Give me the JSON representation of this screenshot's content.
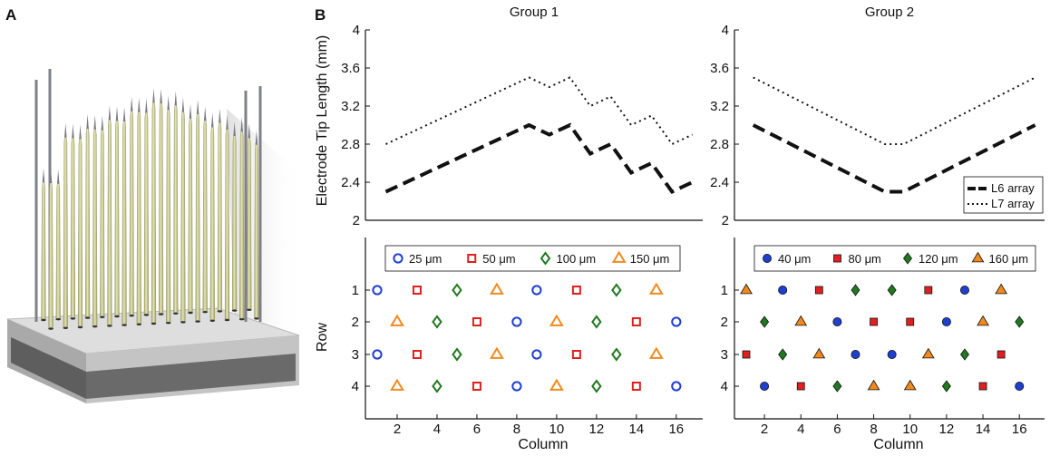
{
  "panel_labels": {
    "a": "A",
    "b": "B"
  },
  "illustration": {
    "description_icon": "electrode-array-3d-icon",
    "colors": {
      "shank": "#cfcf9a",
      "shank_dark": "#9f9f6a",
      "tip": "#777788",
      "base_top": "#d8d8d8",
      "base_side": "#5e5e5e"
    }
  },
  "colors": {
    "blue": "#1f3fd0",
    "red": "#e02020",
    "green": "#1f7a1f",
    "orange": "#f08a1e",
    "line": "#111111"
  },
  "chart_data": [
    {
      "type": "line",
      "title": "Group 1",
      "ylabel": "Electrode Tip Length (mm)",
      "xlim": [
        0,
        16.5
      ],
      "ylim": [
        2,
        4
      ],
      "yticks": [
        "2",
        "2.4",
        "2.8",
        "3.2",
        "3.6",
        "4"
      ],
      "series": [
        {
          "name": "L6 array",
          "style": "dashed",
          "x": [
            1,
            2,
            3,
            4,
            5,
            6,
            7,
            8,
            9,
            10,
            11,
            12,
            13,
            14,
            15,
            16
          ],
          "y": [
            2.3,
            2.4,
            2.5,
            2.6,
            2.7,
            2.8,
            2.9,
            3.0,
            2.9,
            3.0,
            2.7,
            2.8,
            2.5,
            2.6,
            2.3,
            2.4
          ]
        },
        {
          "name": "L7 array",
          "style": "dotted",
          "x": [
            1,
            2,
            3,
            4,
            5,
            6,
            7,
            8,
            9,
            10,
            11,
            12,
            13,
            14,
            15,
            16
          ],
          "y": [
            2.8,
            2.9,
            3.0,
            3.1,
            3.2,
            3.3,
            3.4,
            3.5,
            3.4,
            3.5,
            3.2,
            3.3,
            3.0,
            3.1,
            2.8,
            2.9
          ]
        }
      ]
    },
    {
      "type": "line",
      "title": "Group 2",
      "xlim": [
        0,
        16.5
      ],
      "ylim": [
        2,
        4
      ],
      "yticks": [
        "2",
        "2.4",
        "2.8",
        "3.2",
        "3.6",
        "4"
      ],
      "legend": {
        "position": "bottom-right",
        "entries": [
          "L6 array",
          "L7 array"
        ]
      },
      "series": [
        {
          "name": "L6 array",
          "style": "dashed",
          "x": [
            1,
            2,
            3,
            4,
            5,
            6,
            7,
            8,
            9,
            10,
            11,
            12,
            13,
            14,
            15,
            16
          ],
          "y": [
            3.0,
            2.9,
            2.8,
            2.7,
            2.6,
            2.5,
            2.4,
            2.3,
            2.3,
            2.4,
            2.5,
            2.6,
            2.7,
            2.8,
            2.9,
            3.0
          ]
        },
        {
          "name": "L7 array",
          "style": "dotted",
          "x": [
            1,
            2,
            3,
            4,
            5,
            6,
            7,
            8,
            9,
            10,
            11,
            12,
            13,
            14,
            15,
            16
          ],
          "y": [
            3.5,
            3.4,
            3.3,
            3.2,
            3.1,
            3.0,
            2.9,
            2.8,
            2.8,
            2.9,
            3.0,
            3.1,
            3.2,
            3.3,
            3.4,
            3.5
          ]
        }
      ]
    },
    {
      "type": "scatter",
      "panel": "Group 1 layout",
      "filled": false,
      "ylabel": "Row",
      "xlabel": "Column",
      "xticks": [
        "2",
        "4",
        "6",
        "8",
        "10",
        "12",
        "14",
        "16"
      ],
      "rows": [
        "1",
        "2",
        "3",
        "4"
      ],
      "legend": [
        {
          "label": "25 μm",
          "shape": "circle",
          "color": "#1f3fd0"
        },
        {
          "label": "50 μm",
          "shape": "square",
          "color": "#e02020"
        },
        {
          "label": "100 μm",
          "shape": "diamond",
          "color": "#1f7a1f"
        },
        {
          "label": "150 μm",
          "shape": "triangle",
          "color": "#f08a1e"
        }
      ],
      "points": [
        {
          "row": 1,
          "col": 1,
          "shape": "circle"
        },
        {
          "row": 1,
          "col": 3,
          "shape": "square"
        },
        {
          "row": 1,
          "col": 5,
          "shape": "diamond"
        },
        {
          "row": 1,
          "col": 7,
          "shape": "triangle"
        },
        {
          "row": 1,
          "col": 9,
          "shape": "circle"
        },
        {
          "row": 1,
          "col": 11,
          "shape": "square"
        },
        {
          "row": 1,
          "col": 13,
          "shape": "diamond"
        },
        {
          "row": 1,
          "col": 15,
          "shape": "triangle"
        },
        {
          "row": 2,
          "col": 2,
          "shape": "triangle"
        },
        {
          "row": 2,
          "col": 4,
          "shape": "diamond"
        },
        {
          "row": 2,
          "col": 6,
          "shape": "square"
        },
        {
          "row": 2,
          "col": 8,
          "shape": "circle"
        },
        {
          "row": 2,
          "col": 10,
          "shape": "triangle"
        },
        {
          "row": 2,
          "col": 12,
          "shape": "diamond"
        },
        {
          "row": 2,
          "col": 14,
          "shape": "square"
        },
        {
          "row": 2,
          "col": 16,
          "shape": "circle"
        },
        {
          "row": 3,
          "col": 1,
          "shape": "circle"
        },
        {
          "row": 3,
          "col": 3,
          "shape": "square"
        },
        {
          "row": 3,
          "col": 5,
          "shape": "diamond"
        },
        {
          "row": 3,
          "col": 7,
          "shape": "triangle"
        },
        {
          "row": 3,
          "col": 9,
          "shape": "circle"
        },
        {
          "row": 3,
          "col": 11,
          "shape": "square"
        },
        {
          "row": 3,
          "col": 13,
          "shape": "diamond"
        },
        {
          "row": 3,
          "col": 15,
          "shape": "triangle"
        },
        {
          "row": 4,
          "col": 2,
          "shape": "triangle"
        },
        {
          "row": 4,
          "col": 4,
          "shape": "diamond"
        },
        {
          "row": 4,
          "col": 6,
          "shape": "square"
        },
        {
          "row": 4,
          "col": 8,
          "shape": "circle"
        },
        {
          "row": 4,
          "col": 10,
          "shape": "triangle"
        },
        {
          "row": 4,
          "col": 12,
          "shape": "diamond"
        },
        {
          "row": 4,
          "col": 14,
          "shape": "square"
        },
        {
          "row": 4,
          "col": 16,
          "shape": "circle"
        }
      ]
    },
    {
      "type": "scatter",
      "panel": "Group 2 layout",
      "filled": true,
      "xlabel": "Column",
      "xticks": [
        "2",
        "4",
        "6",
        "8",
        "10",
        "12",
        "14",
        "16"
      ],
      "rows": [
        "1",
        "2",
        "3",
        "4"
      ],
      "legend": [
        {
          "label": "40 μm",
          "shape": "circle",
          "color": "#1f3fd0"
        },
        {
          "label": "80 μm",
          "shape": "square",
          "color": "#e02020"
        },
        {
          "label": "120 μm",
          "shape": "diamond",
          "color": "#1f7a1f"
        },
        {
          "label": "160 μm",
          "shape": "triangle",
          "color": "#f08a1e"
        }
      ],
      "points": [
        {
          "row": 1,
          "col": 1,
          "shape": "triangle"
        },
        {
          "row": 1,
          "col": 3,
          "shape": "circle"
        },
        {
          "row": 1,
          "col": 5,
          "shape": "square"
        },
        {
          "row": 1,
          "col": 7,
          "shape": "diamond"
        },
        {
          "row": 1,
          "col": 9,
          "shape": "diamond"
        },
        {
          "row": 1,
          "col": 11,
          "shape": "square"
        },
        {
          "row": 1,
          "col": 13,
          "shape": "circle"
        },
        {
          "row": 1,
          "col": 15,
          "shape": "triangle"
        },
        {
          "row": 2,
          "col": 2,
          "shape": "diamond"
        },
        {
          "row": 2,
          "col": 4,
          "shape": "triangle"
        },
        {
          "row": 2,
          "col": 6,
          "shape": "circle"
        },
        {
          "row": 2,
          "col": 8,
          "shape": "square"
        },
        {
          "row": 2,
          "col": 10,
          "shape": "square"
        },
        {
          "row": 2,
          "col": 12,
          "shape": "circle"
        },
        {
          "row": 2,
          "col": 14,
          "shape": "triangle"
        },
        {
          "row": 2,
          "col": 16,
          "shape": "diamond"
        },
        {
          "row": 3,
          "col": 1,
          "shape": "square"
        },
        {
          "row": 3,
          "col": 3,
          "shape": "diamond"
        },
        {
          "row": 3,
          "col": 5,
          "shape": "triangle"
        },
        {
          "row": 3,
          "col": 7,
          "shape": "circle"
        },
        {
          "row": 3,
          "col": 9,
          "shape": "circle"
        },
        {
          "row": 3,
          "col": 11,
          "shape": "triangle"
        },
        {
          "row": 3,
          "col": 13,
          "shape": "diamond"
        },
        {
          "row": 3,
          "col": 15,
          "shape": "square"
        },
        {
          "row": 4,
          "col": 2,
          "shape": "circle"
        },
        {
          "row": 4,
          "col": 4,
          "shape": "square"
        },
        {
          "row": 4,
          "col": 6,
          "shape": "diamond"
        },
        {
          "row": 4,
          "col": 8,
          "shape": "triangle"
        },
        {
          "row": 4,
          "col": 10,
          "shape": "triangle"
        },
        {
          "row": 4,
          "col": 12,
          "shape": "diamond"
        },
        {
          "row": 4,
          "col": 14,
          "shape": "square"
        },
        {
          "row": 4,
          "col": 16,
          "shape": "circle"
        }
      ]
    }
  ]
}
